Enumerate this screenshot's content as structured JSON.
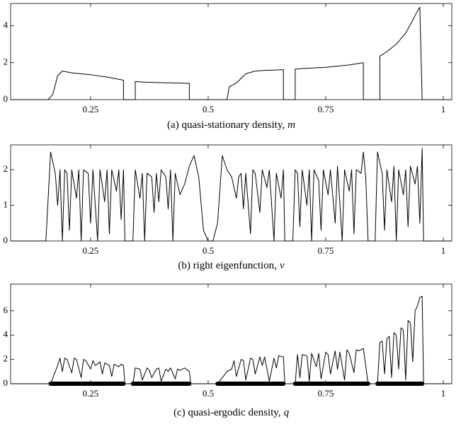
{
  "chart_data": [
    {
      "type": "line",
      "caption": "(a) quasi-stationary density,",
      "caption_var": "m",
      "xlim": [
        0.08,
        1.018
      ],
      "xticks": [
        0.25,
        0.5,
        0.75,
        1
      ],
      "ylim": [
        0,
        5.2
      ],
      "yticks": [
        0,
        2,
        4
      ],
      "series": [
        {
          "color": "#000000",
          "x": [
            0.08,
            0.16,
            0.17,
            0.18,
            0.19,
            0.21,
            0.25,
            0.29,
            0.32,
            0.32,
            0.345,
            0.345,
            0.36,
            0.4,
            0.44,
            0.46,
            0.46,
            0.54,
            0.545,
            0.56,
            0.58,
            0.6,
            0.62,
            0.66,
            0.66,
            0.685,
            0.685,
            0.7,
            0.75,
            0.8,
            0.83,
            0.83,
            0.865,
            0.865,
            0.88,
            0.9,
            0.92,
            0.935,
            0.945,
            0.95,
            0.955,
            1.018
          ],
          "values": [
            0,
            0,
            0.3,
            1.3,
            1.55,
            1.45,
            1.35,
            1.2,
            1.05,
            0,
            0,
            0.98,
            0.95,
            0.92,
            0.9,
            0.88,
            0,
            0,
            0.7,
            0.9,
            1.4,
            1.55,
            1.58,
            1.62,
            0,
            0,
            1.65,
            1.68,
            1.75,
            1.88,
            2.0,
            0,
            0,
            2.35,
            2.6,
            3.0,
            3.6,
            4.3,
            4.8,
            5.0,
            0,
            0
          ]
        }
      ]
    },
    {
      "type": "line",
      "caption": "(b) right eigenfunction,",
      "caption_var": "v",
      "xlim": [
        0.08,
        1.018
      ],
      "xticks": [
        0.25,
        0.5,
        0.75,
        1
      ],
      "ylim": [
        0,
        2.7
      ],
      "yticks": [
        0,
        1,
        2
      ],
      "series": [
        {
          "color": "#000000",
          "x": [
            0.08,
            0.155,
            0.165,
            0.175,
            0.18,
            0.185,
            0.19,
            0.195,
            0.2,
            0.205,
            0.21,
            0.22,
            0.225,
            0.23,
            0.235,
            0.245,
            0.25,
            0.255,
            0.265,
            0.27,
            0.28,
            0.285,
            0.29,
            0.295,
            0.305,
            0.31,
            0.315,
            0.32,
            0.323,
            0.34,
            0.345,
            0.355,
            0.36,
            0.365,
            0.37,
            0.38,
            0.385,
            0.39,
            0.395,
            0.4,
            0.41,
            0.415,
            0.42,
            0.425,
            0.43,
            0.44,
            0.45,
            0.46,
            0.47,
            0.48,
            0.49,
            0.5,
            0.51,
            0.52,
            0.53,
            0.54,
            0.55,
            0.56,
            0.565,
            0.57,
            0.575,
            0.58,
            0.59,
            0.595,
            0.6,
            0.61,
            0.615,
            0.625,
            0.63,
            0.64,
            0.645,
            0.655,
            0.66,
            0.663,
            0.68,
            0.685,
            0.69,
            0.695,
            0.7,
            0.71,
            0.715,
            0.72,
            0.725,
            0.735,
            0.74,
            0.745,
            0.755,
            0.76,
            0.77,
            0.775,
            0.785,
            0.79,
            0.8,
            0.805,
            0.81,
            0.815,
            0.825,
            0.83,
            0.835,
            0.84,
            0.855,
            0.86,
            0.87,
            0.875,
            0.88,
            0.89,
            0.895,
            0.9,
            0.905,
            0.915,
            0.92,
            0.925,
            0.93,
            0.94,
            0.945,
            0.95,
            0.955,
            0.958,
            1.018
          ],
          "values": [
            0,
            0,
            2.5,
            1.9,
            1.0,
            2.0,
            0,
            2.0,
            1.9,
            0.3,
            2.0,
            1.2,
            2.0,
            0,
            2.0,
            1.9,
            0.5,
            2.0,
            0,
            2.0,
            1.1,
            2.0,
            0.2,
            2.0,
            1.4,
            2.0,
            0.6,
            2.0,
            0,
            0,
            2.0,
            1.2,
            1.9,
            0,
            1.9,
            1.8,
            0.8,
            1.9,
            1.1,
            2.0,
            1.8,
            0.9,
            2.0,
            0,
            1.9,
            1.3,
            1.6,
            2.1,
            2.4,
            1.8,
            0.3,
            0,
            0,
            0.5,
            2.4,
            2.0,
            1.8,
            1.2,
            1.8,
            1.9,
            0.9,
            1.9,
            0.2,
            2.0,
            1.9,
            0.8,
            2.0,
            1.5,
            2.0,
            0,
            1.9,
            1.2,
            2.0,
            0,
            0,
            2.0,
            1.9,
            0.4,
            2.0,
            1.0,
            2.0,
            0,
            2.0,
            1.7,
            0.3,
            2.0,
            1.3,
            2.0,
            0.5,
            2.1,
            0,
            2.0,
            1.4,
            2.0,
            0.2,
            2.0,
            1.9,
            2.5,
            1.8,
            0,
            0,
            2.5,
            1.9,
            0.3,
            2.0,
            1.1,
            2.1,
            0,
            2.0,
            1.3,
            2.0,
            0.4,
            2.1,
            1.6,
            2.1,
            0.5,
            2.6,
            0,
            0
          ]
        }
      ]
    },
    {
      "type": "line",
      "caption": "(c) quasi-ergodic density,",
      "caption_var": "q",
      "xlim": [
        0.08,
        1.018
      ],
      "xticks": [
        0.25,
        0.5,
        0.75,
        1
      ],
      "ylim": [
        0,
        8.2
      ],
      "yticks": [
        0,
        2,
        4,
        6
      ],
      "segments": [
        [
          0.165,
          0.32
        ],
        [
          0.34,
          0.46
        ],
        [
          0.52,
          0.66
        ],
        [
          0.685,
          0.84
        ],
        [
          0.86,
          0.955
        ]
      ],
      "series": [
        {
          "color": "#000000",
          "x": [
            0.08,
            0.165,
            0.175,
            0.18,
            0.185,
            0.19,
            0.195,
            0.2,
            0.21,
            0.215,
            0.22,
            0.23,
            0.235,
            0.24,
            0.25,
            0.255,
            0.26,
            0.27,
            0.275,
            0.28,
            0.29,
            0.295,
            0.3,
            0.31,
            0.315,
            0.32,
            0.323,
            0.34,
            0.345,
            0.355,
            0.36,
            0.37,
            0.375,
            0.38,
            0.39,
            0.395,
            0.4,
            0.41,
            0.415,
            0.42,
            0.43,
            0.435,
            0.44,
            0.45,
            0.46,
            0.463,
            0.52,
            0.53,
            0.54,
            0.55,
            0.555,
            0.56,
            0.57,
            0.575,
            0.58,
            0.59,
            0.595,
            0.6,
            0.61,
            0.615,
            0.62,
            0.63,
            0.64,
            0.645,
            0.65,
            0.66,
            0.663,
            0.685,
            0.69,
            0.695,
            0.7,
            0.71,
            0.715,
            0.72,
            0.73,
            0.735,
            0.74,
            0.75,
            0.755,
            0.76,
            0.77,
            0.775,
            0.78,
            0.79,
            0.795,
            0.8,
            0.81,
            0.815,
            0.82,
            0.83,
            0.835,
            0.84,
            0.86,
            0.865,
            0.87,
            0.875,
            0.88,
            0.885,
            0.89,
            0.895,
            0.9,
            0.905,
            0.91,
            0.915,
            0.92,
            0.925,
            0.93,
            0.935,
            0.94,
            0.945,
            0.95,
            0.955,
            0.958,
            1.018
          ],
          "values": [
            0,
            0,
            1.0,
            1.5,
            2.1,
            1.0,
            2.1,
            2.0,
            0.9,
            2.1,
            2.0,
            0.5,
            2.0,
            1.9,
            1.2,
            1.9,
            1.5,
            1.8,
            0.8,
            1.7,
            1.5,
            0.6,
            1.6,
            1.4,
            1.6,
            1.5,
            0,
            0,
            1.3,
            1.2,
            0.3,
            1.3,
            1.1,
            0.5,
            1.2,
            1.3,
            0.2,
            1.2,
            1.0,
            1.3,
            0.4,
            1.2,
            1.1,
            1.3,
            1.0,
            0,
            0,
            0.5,
            1.0,
            1.2,
            1.9,
            0.6,
            2.0,
            1.9,
            0.3,
            2.1,
            2.0,
            0.8,
            2.2,
            1.5,
            2.2,
            0.2,
            2.1,
            1.3,
            2.3,
            2.2,
            0,
            0,
            2.4,
            0.5,
            2.4,
            2.3,
            0.2,
            2.5,
            1.4,
            2.5,
            0.4,
            2.6,
            2.4,
            0.8,
            2.7,
            1.2,
            2.6,
            0.3,
            2.8,
            2.5,
            0.9,
            2.8,
            2.7,
            2.9,
            1.5,
            0,
            0,
            3.4,
            3.5,
            0.8,
            3.7,
            3.9,
            0.5,
            4.2,
            4.0,
            1.2,
            4.6,
            4.4,
            0.3,
            5.2,
            5.0,
            1.8,
            6.0,
            6.4,
            7.1,
            7.2,
            0,
            0
          ]
        }
      ]
    }
  ]
}
